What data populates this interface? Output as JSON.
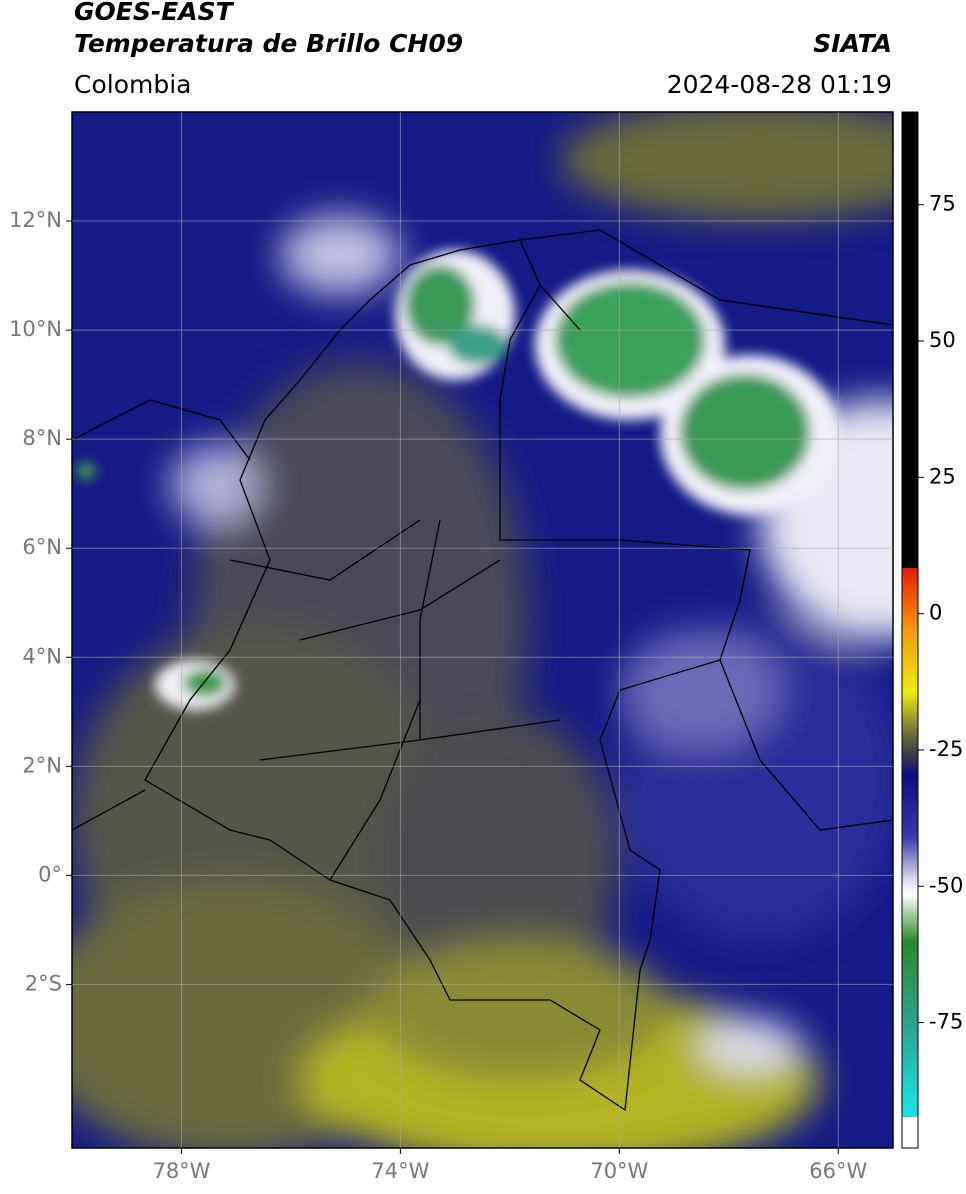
{
  "header": {
    "title": "GOES-EAST",
    "subtitle": "Temperatura de Brillo CH09",
    "source": "SIATA",
    "region": "Colombia",
    "datetime": "2024-08-28 01:19"
  },
  "map": {
    "lonlim": [
      -80,
      -65
    ],
    "latlim": [
      -5,
      14
    ],
    "lon_ticks": [
      {
        "value": -78,
        "label": "78°W"
      },
      {
        "value": -74,
        "label": "74°W"
      },
      {
        "value": -70,
        "label": "70°W"
      },
      {
        "value": -66,
        "label": "66°W"
      }
    ],
    "lat_ticks": [
      {
        "value": 12,
        "label": "12°N"
      },
      {
        "value": 10,
        "label": "10°N"
      },
      {
        "value": 8,
        "label": "8°N"
      },
      {
        "value": 6,
        "label": "6°N"
      },
      {
        "value": 4,
        "label": "4°N"
      },
      {
        "value": 2,
        "label": "2°N"
      },
      {
        "value": 0,
        "label": "0°"
      },
      {
        "value": -2,
        "label": "2°S"
      }
    ]
  },
  "colorbar": {
    "lim": [
      -98,
      92
    ],
    "ticks": [
      75,
      50,
      25,
      0,
      -25,
      -50,
      -75
    ]
  }
}
